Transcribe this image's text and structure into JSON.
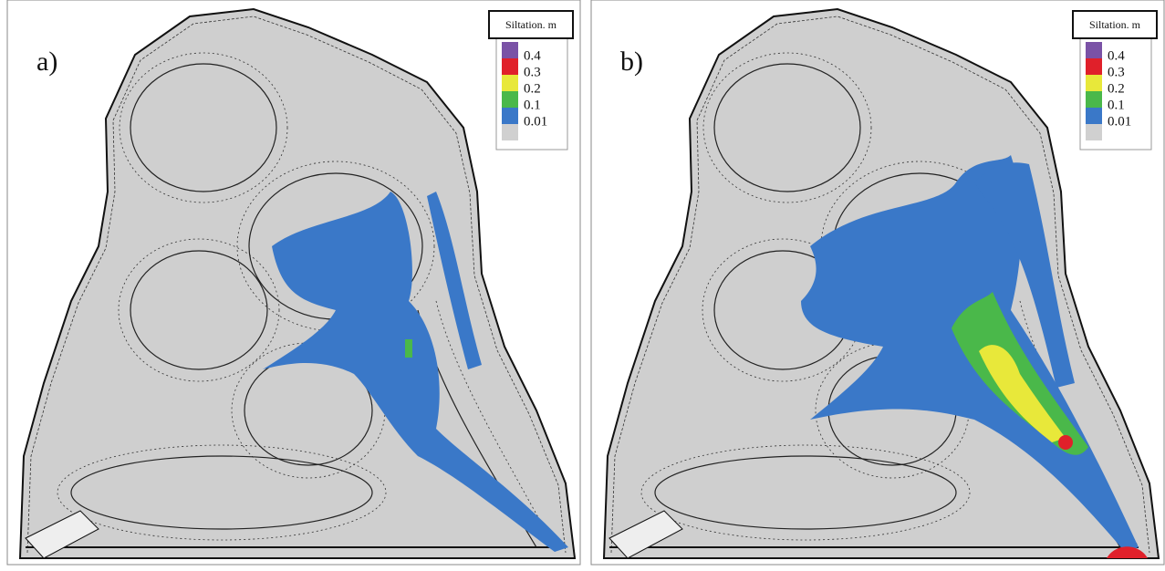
{
  "panels": [
    {
      "label": "a)",
      "legend": {
        "title": "Siltation. m",
        "levels": [
          0.4,
          0.3,
          0.2,
          0.1,
          0.01
        ],
        "colors": [
          "#7a52a6",
          "#e0202a",
          "#e8e83a",
          "#4ab84a",
          "#3a78c8",
          "#d0d0d0"
        ]
      }
    },
    {
      "label": "b)",
      "legend": {
        "title": "Siltation. m",
        "levels": [
          0.4,
          0.3,
          0.2,
          0.1,
          0.01
        ],
        "colors": [
          "#7a52a6",
          "#e0202a",
          "#e8e83a",
          "#4ab84a",
          "#3a78c8",
          "#d0d0d0"
        ]
      }
    }
  ]
}
